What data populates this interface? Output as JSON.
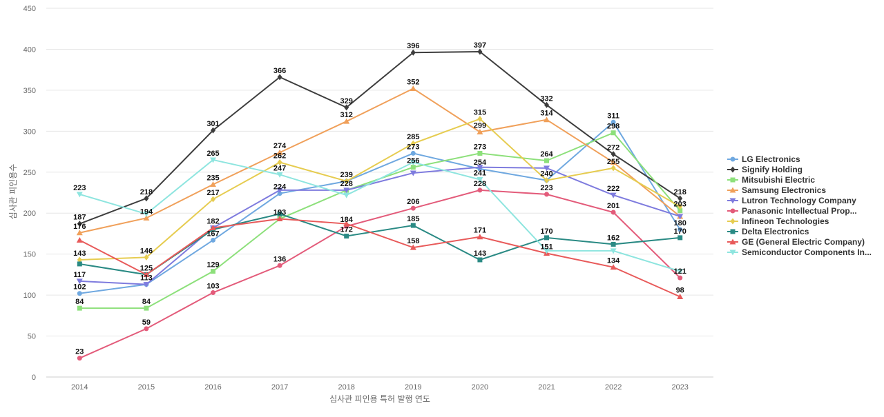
{
  "chart_data": {
    "type": "line",
    "title": "",
    "xlabel": "심사관 피인용 특허 발행 연도",
    "ylabel": "심사관 피인용수",
    "x": [
      "2014",
      "2015",
      "2016",
      "2017",
      "2018",
      "2019",
      "2020",
      "2021",
      "2022",
      "2023"
    ],
    "ylim": [
      0,
      450
    ],
    "yticks": [
      0,
      50,
      100,
      150,
      200,
      250,
      300,
      350,
      400,
      450
    ],
    "grid": true,
    "legend_position": "right",
    "series": [
      {
        "name": "LG Electronics",
        "color": "#6FA8E0",
        "marker": "circle",
        "values": [
          102,
          113,
          167,
          224,
          239,
          273,
          254,
          240,
          311,
          180
        ]
      },
      {
        "name": "Signify Holding",
        "color": "#3D3D3D",
        "marker": "diamond",
        "values": [
          187,
          218,
          301,
          366,
          329,
          396,
          397,
          332,
          272,
          218
        ]
      },
      {
        "name": "Mitsubishi Electric",
        "color": "#8DE07B",
        "marker": "square",
        "values": [
          84,
          84,
          129,
          193,
          228,
          256,
          273,
          264,
          298,
          203
        ]
      },
      {
        "name": "Samsung Electronics",
        "color": "#F0A05A",
        "marker": "triangle-up",
        "values": [
          176,
          194,
          235,
          274,
          312,
          352,
          299,
          314,
          262,
          196
        ]
      },
      {
        "name": "Lutron Technology Company",
        "color": "#7E7BDE",
        "marker": "triangle-down",
        "values": [
          117,
          113,
          182,
          228,
          228,
          249,
          256,
          255,
          222,
          196
        ]
      },
      {
        "name": "Panasonic Intellectual Prop...",
        "color": "#E35B7A",
        "marker": "circle",
        "values": [
          23,
          59,
          103,
          136,
          184,
          206,
          228,
          223,
          201,
          121
        ]
      },
      {
        "name": "Infineon Technologies",
        "color": "#E6CC50",
        "marker": "diamond",
        "values": [
          143,
          146,
          217,
          262,
          239,
          285,
          315,
          240,
          255,
          208
        ]
      },
      {
        "name": "Delta Electronics",
        "color": "#2A8A84",
        "marker": "square",
        "values": [
          138,
          125,
          180,
          199,
          172,
          185,
          143,
          170,
          162,
          170
        ]
      },
      {
        "name": "GE (General Electric Company)",
        "color": "#E85A5A",
        "marker": "triangle-up",
        "values": [
          167,
          125,
          182,
          193,
          187,
          158,
          171,
          151,
          134,
          98
        ]
      },
      {
        "name": "Semiconductor Components In...",
        "color": "#8EE5DF",
        "marker": "triangle-down",
        "values": [
          223,
          199,
          265,
          247,
          222,
          262,
          241,
          154,
          154,
          129
        ]
      }
    ],
    "data_labels": [
      {
        "text": "223",
        "x": "2014",
        "y": 223
      },
      {
        "text": "187",
        "x": "2014",
        "y": 187
      },
      {
        "text": "176",
        "x": "2014",
        "y": 176
      },
      {
        "text": "143",
        "x": "2014",
        "y": 143
      },
      {
        "text": "117",
        "x": "2014",
        "y": 117
      },
      {
        "text": "102",
        "x": "2014",
        "y": 102
      },
      {
        "text": "84",
        "x": "2014",
        "y": 84
      },
      {
        "text": "23",
        "x": "2014",
        "y": 23
      },
      {
        "text": "218",
        "x": "2015",
        "y": 218
      },
      {
        "text": "194",
        "x": "2015",
        "y": 194
      },
      {
        "text": "146",
        "x": "2015",
        "y": 146
      },
      {
        "text": "125",
        "x": "2015",
        "y": 125
      },
      {
        "text": "113",
        "x": "2015",
        "y": 113
      },
      {
        "text": "84",
        "x": "2015",
        "y": 84
      },
      {
        "text": "59",
        "x": "2015",
        "y": 59
      },
      {
        "text": "301",
        "x": "2016",
        "y": 301
      },
      {
        "text": "265",
        "x": "2016",
        "y": 265
      },
      {
        "text": "235",
        "x": "2016",
        "y": 235
      },
      {
        "text": "217",
        "x": "2016",
        "y": 217
      },
      {
        "text": "182",
        "x": "2016",
        "y": 182
      },
      {
        "text": "167",
        "x": "2016",
        "y": 167
      },
      {
        "text": "129",
        "x": "2016",
        "y": 129
      },
      {
        "text": "103",
        "x": "2016",
        "y": 103
      },
      {
        "text": "366",
        "x": "2017",
        "y": 366
      },
      {
        "text": "274",
        "x": "2017",
        "y": 274
      },
      {
        "text": "262",
        "x": "2017",
        "y": 262
      },
      {
        "text": "247",
        "x": "2017",
        "y": 247
      },
      {
        "text": "224",
        "x": "2017",
        "y": 224
      },
      {
        "text": "193",
        "x": "2017",
        "y": 193
      },
      {
        "text": "136",
        "x": "2017",
        "y": 136
      },
      {
        "text": "329",
        "x": "2018",
        "y": 329
      },
      {
        "text": "312",
        "x": "2018",
        "y": 312
      },
      {
        "text": "239",
        "x": "2018",
        "y": 239
      },
      {
        "text": "228",
        "x": "2018",
        "y": 228
      },
      {
        "text": "184",
        "x": "2018",
        "y": 184
      },
      {
        "text": "172",
        "x": "2018",
        "y": 172
      },
      {
        "text": "396",
        "x": "2019",
        "y": 396
      },
      {
        "text": "352",
        "x": "2019",
        "y": 352
      },
      {
        "text": "285",
        "x": "2019",
        "y": 285
      },
      {
        "text": "273",
        "x": "2019",
        "y": 273
      },
      {
        "text": "256",
        "x": "2019",
        "y": 256
      },
      {
        "text": "206",
        "x": "2019",
        "y": 206
      },
      {
        "text": "185",
        "x": "2019",
        "y": 185
      },
      {
        "text": "158",
        "x": "2019",
        "y": 158
      },
      {
        "text": "397",
        "x": "2020",
        "y": 397
      },
      {
        "text": "315",
        "x": "2020",
        "y": 315
      },
      {
        "text": "299",
        "x": "2020",
        "y": 299
      },
      {
        "text": "273",
        "x": "2020",
        "y": 273
      },
      {
        "text": "254",
        "x": "2020",
        "y": 254
      },
      {
        "text": "241",
        "x": "2020",
        "y": 241
      },
      {
        "text": "228",
        "x": "2020",
        "y": 228
      },
      {
        "text": "171",
        "x": "2020",
        "y": 171
      },
      {
        "text": "143",
        "x": "2020",
        "y": 143
      },
      {
        "text": "332",
        "x": "2021",
        "y": 332
      },
      {
        "text": "314",
        "x": "2021",
        "y": 314
      },
      {
        "text": "264",
        "x": "2021",
        "y": 264
      },
      {
        "text": "240",
        "x": "2021",
        "y": 240
      },
      {
        "text": "223",
        "x": "2021",
        "y": 223
      },
      {
        "text": "170",
        "x": "2021",
        "y": 170
      },
      {
        "text": "151",
        "x": "2021",
        "y": 151
      },
      {
        "text": "311",
        "x": "2022",
        "y": 311
      },
      {
        "text": "298",
        "x": "2022",
        "y": 298
      },
      {
        "text": "272",
        "x": "2022",
        "y": 272
      },
      {
        "text": "255",
        "x": "2022",
        "y": 255
      },
      {
        "text": "222",
        "x": "2022",
        "y": 222
      },
      {
        "text": "201",
        "x": "2022",
        "y": 201
      },
      {
        "text": "162",
        "x": "2022",
        "y": 162
      },
      {
        "text": "134",
        "x": "2022",
        "y": 134
      },
      {
        "text": "218",
        "x": "2023",
        "y": 218
      },
      {
        "text": "203",
        "x": "2023",
        "y": 203
      },
      {
        "text": "180",
        "x": "2023",
        "y": 180
      },
      {
        "text": "170",
        "x": "2023",
        "y": 170
      },
      {
        "text": "121",
        "x": "2023",
        "y": 121
      },
      {
        "text": "98",
        "x": "2023",
        "y": 98
      }
    ]
  }
}
